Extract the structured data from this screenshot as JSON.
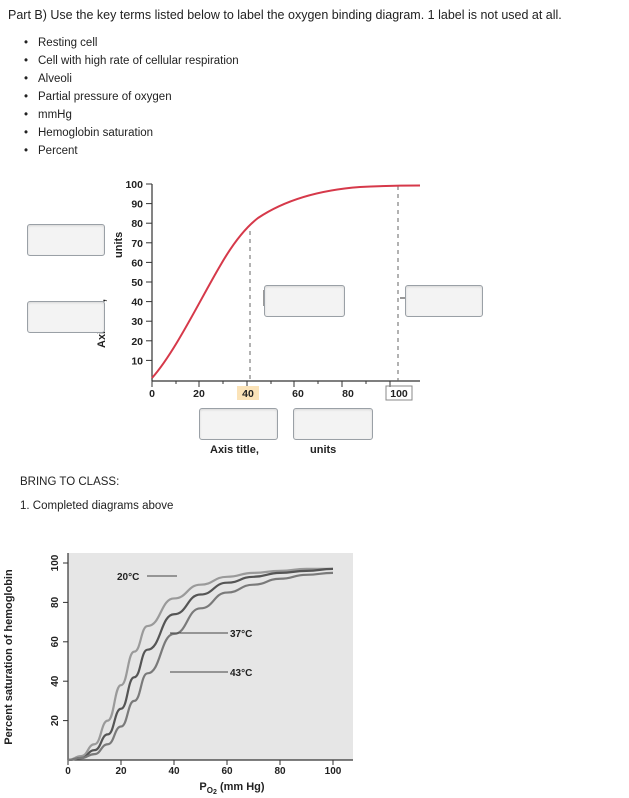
{
  "question": {
    "prompt": "Part B) Use the key terms listed below to label the oxygen binding diagram. 1 label is not used at all.",
    "terms": [
      "Resting cell",
      "Cell with high rate of cellular respiration",
      "Alveoli",
      "Partial pressure of oxygen",
      "mmHg",
      "Hemoglobin saturation",
      "Percent"
    ]
  },
  "diagram": {
    "y_ticks": [
      "100",
      "90",
      "80",
      "70",
      "60",
      "50",
      "40",
      "30",
      "20",
      "10"
    ],
    "x_ticks": [
      "0",
      "20",
      "40",
      "60",
      "80",
      "100"
    ],
    "y_axis_title_partial": "Axis title,",
    "y_axis_units_partial": "units",
    "x_axis_title": "Axis title,",
    "x_axis_units": "units",
    "highlight_tick": "40",
    "curve_color": "#d6394a"
  },
  "bring": {
    "heading": "BRING TO CLASS:",
    "item": "1. Completed diagrams above"
  },
  "chart_data": {
    "type": "line",
    "title": "",
    "xlabel": "Po2 (mm Hg)",
    "ylabel": "Percent saturation of hemoglobin",
    "x_ticks": [
      "0",
      "20",
      "40",
      "60",
      "80",
      "100"
    ],
    "y_ticks": [
      "100",
      "80",
      "60",
      "40",
      "20"
    ],
    "xlim": [
      0,
      100
    ],
    "ylim": [
      0,
      100
    ],
    "series": [
      {
        "name": "20°C",
        "x": [
          0,
          5,
          10,
          15,
          20,
          25,
          30,
          40,
          50,
          60,
          70,
          80,
          90,
          100
        ],
        "y": [
          0,
          2,
          8,
          20,
          38,
          55,
          68,
          82,
          89,
          93,
          95,
          96,
          97,
          97
        ]
      },
      {
        "name": "37°C",
        "x": [
          0,
          5,
          10,
          15,
          20,
          25,
          30,
          40,
          50,
          60,
          70,
          80,
          90,
          100
        ],
        "y": [
          0,
          1,
          5,
          13,
          26,
          42,
          56,
          74,
          84,
          90,
          93,
          95,
          96,
          97
        ]
      },
      {
        "name": "43°C",
        "x": [
          0,
          5,
          10,
          15,
          20,
          25,
          30,
          40,
          50,
          60,
          70,
          80,
          90,
          100
        ],
        "y": [
          0,
          1,
          3,
          8,
          17,
          30,
          44,
          64,
          77,
          85,
          89,
          92,
          94,
          95
        ]
      }
    ]
  }
}
